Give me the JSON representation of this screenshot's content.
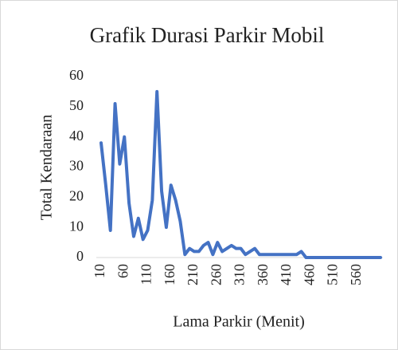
{
  "chart_data": {
    "type": "line",
    "title": "Grafik Durasi Parkir Mobil",
    "xlabel": "Lama Parkir (Menit)",
    "ylabel": "Total Kendaraan",
    "categories": [
      "10",
      null,
      null,
      null,
      null,
      "60",
      null,
      null,
      null,
      null,
      "110",
      null,
      null,
      null,
      null,
      "160",
      null,
      null,
      null,
      null,
      "210",
      null,
      null,
      null,
      null,
      "260",
      null,
      null,
      null,
      null,
      "310",
      null,
      null,
      null,
      null,
      "360",
      null,
      null,
      null,
      null,
      "410",
      null,
      null,
      null,
      null,
      "460",
      null,
      null,
      null,
      null,
      "510",
      null,
      null,
      null,
      null,
      "560",
      null,
      null,
      null,
      null,
      null
    ],
    "values": [
      38,
      24,
      9,
      51,
      31,
      40,
      18,
      7,
      13,
      6,
      9,
      19,
      55,
      22,
      10,
      24,
      19,
      12,
      1,
      3,
      2,
      2,
      4,
      5,
      1,
      5,
      2,
      3,
      4,
      3,
      3,
      1,
      2,
      3,
      1,
      1,
      1,
      1,
      1,
      1,
      1,
      1,
      1,
      2,
      0,
      0,
      0,
      0,
      0,
      0,
      0,
      0,
      0,
      0,
      0,
      0,
      0,
      0,
      0,
      0,
      0
    ],
    "color": "#4472c4",
    "ylim": [
      0,
      60
    ],
    "yticks": [
      0,
      10,
      20,
      30,
      40,
      50,
      60
    ],
    "grid": false
  }
}
